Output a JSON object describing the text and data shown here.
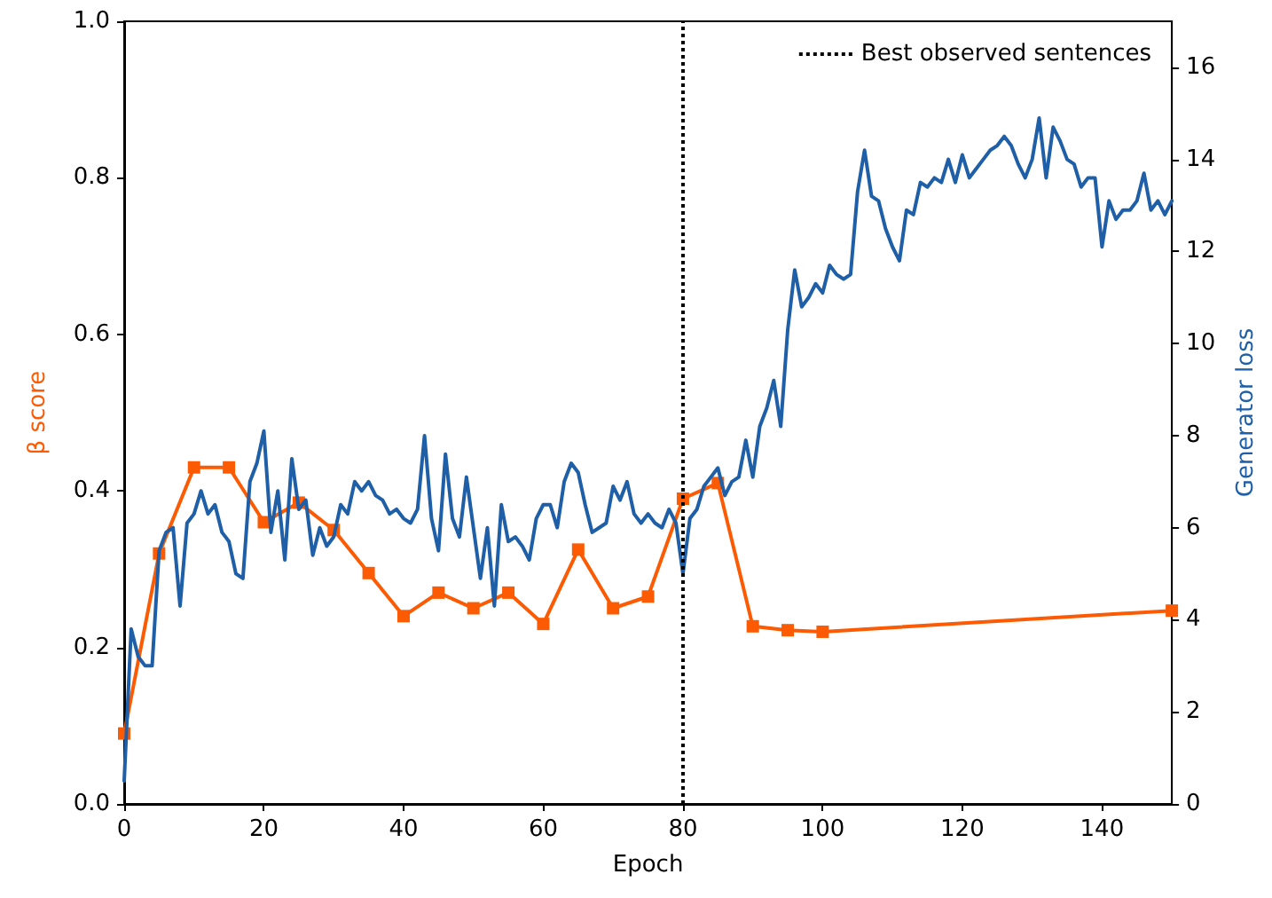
{
  "chart_data": {
    "type": "line",
    "xlabel": "Epoch",
    "ylabel": "β score",
    "y2label": "Generator loss",
    "xlim": [
      0,
      150
    ],
    "xticks": [
      0,
      20,
      40,
      60,
      80,
      100,
      120,
      140
    ],
    "ylim": [
      0,
      1
    ],
    "yticks": [
      {
        "value": 0,
        "label": "0.0"
      },
      0.2,
      0.4,
      0.6,
      0.8,
      {
        "value": 1,
        "label": "1.0"
      }
    ],
    "y2lim": [
      0,
      17
    ],
    "y2ticks": [
      0,
      2,
      4,
      6,
      8,
      10,
      12,
      14,
      16
    ],
    "grid": false,
    "legend": "top right",
    "ref_lines": [
      {
        "axis": "x",
        "value": 80,
        "label": "Best observed sentences",
        "color": "#000000",
        "line_style": "dotted"
      }
    ],
    "series": [
      {
        "color": "#fc5a03",
        "marker": "square",
        "x": [
          0,
          5,
          10,
          15,
          20,
          25,
          30,
          35,
          40,
          45,
          50,
          55,
          60,
          65,
          70,
          75,
          80,
          85,
          90,
          95,
          100,
          150
        ],
        "values": [
          0.09,
          0.32,
          0.43,
          0.43,
          0.36,
          0.385,
          0.35,
          0.295,
          0.24,
          0.27,
          0.25,
          0.27,
          0.23,
          0.325,
          0.25,
          0.265,
          0.39,
          0.41,
          0.227,
          0.222,
          0.22,
          0.247
        ]
      },
      {
        "color": "#1f5fa8",
        "marker": "none",
        "axis": "y2",
        "x": [
          0,
          1,
          2,
          3,
          4,
          5,
          6,
          7,
          8,
          9,
          10,
          11,
          12,
          13,
          14,
          15,
          16,
          17,
          18,
          19,
          20,
          21,
          22,
          23,
          24,
          25,
          26,
          27,
          28,
          29,
          30,
          31,
          32,
          33,
          34,
          35,
          36,
          37,
          38,
          39,
          40,
          41,
          42,
          43,
          44,
          45,
          46,
          47,
          48,
          49,
          50,
          51,
          52,
          53,
          54,
          55,
          56,
          57,
          58,
          59,
          60,
          61,
          62,
          63,
          64,
          65,
          66,
          67,
          68,
          69,
          70,
          71,
          72,
          73,
          74,
          75,
          76,
          77,
          78,
          79,
          80,
          81,
          82,
          83,
          84,
          85,
          86,
          87,
          88,
          89,
          90,
          91,
          92,
          93,
          94,
          95,
          96,
          97,
          98,
          99,
          100,
          101,
          102,
          103,
          104,
          105,
          106,
          107,
          108,
          109,
          110,
          111,
          112,
          113,
          114,
          115,
          116,
          117,
          118,
          119,
          120,
          121,
          122,
          123,
          124,
          125,
          126,
          127,
          128,
          129,
          130,
          131,
          132,
          133,
          134,
          135,
          136,
          137,
          138,
          139,
          140,
          141,
          142,
          143,
          144,
          145,
          146,
          147,
          148,
          149,
          150
        ],
        "values": [
          0.5,
          3.8,
          3.2,
          3.0,
          3.0,
          5.5,
          5.9,
          6.0,
          4.3,
          6.1,
          6.3,
          6.8,
          6.3,
          6.5,
          5.9,
          5.7,
          5.0,
          4.9,
          7.0,
          7.4,
          8.1,
          5.9,
          6.8,
          5.3,
          7.5,
          6.4,
          6.6,
          5.4,
          6.0,
          5.6,
          5.8,
          6.5,
          6.3,
          7.0,
          6.8,
          7.0,
          6.7,
          6.6,
          6.3,
          6.4,
          6.2,
          6.1,
          6.4,
          8.0,
          6.2,
          5.5,
          7.6,
          6.2,
          5.8,
          7.1,
          6.0,
          4.9,
          6.0,
          4.3,
          6.5,
          5.7,
          5.8,
          5.6,
          5.3,
          6.2,
          6.5,
          6.5,
          6.0,
          7.0,
          7.4,
          7.2,
          6.5,
          5.9,
          6.0,
          6.1,
          6.9,
          6.6,
          7.0,
          6.3,
          6.1,
          6.3,
          6.1,
          6.0,
          6.4,
          6.1,
          5.0,
          6.2,
          6.4,
          6.9,
          7.1,
          7.3,
          6.7,
          7.0,
          7.1,
          7.9,
          7.1,
          8.2,
          8.6,
          9.2,
          8.2,
          10.3,
          11.6,
          10.8,
          11.0,
          11.3,
          11.1,
          11.7,
          11.5,
          11.4,
          11.5,
          13.3,
          14.2,
          13.2,
          13.1,
          12.5,
          12.1,
          11.8,
          12.9,
          12.8,
          13.5,
          13.4,
          13.6,
          13.5,
          14.0,
          13.5,
          14.1,
          13.6,
          13.8,
          14.0,
          14.2,
          14.3,
          14.5,
          14.3,
          13.9,
          13.6,
          14.0,
          14.9,
          13.6,
          14.7,
          14.4,
          14.0,
          13.9,
          13.4,
          13.6,
          13.6,
          12.1,
          13.1,
          12.7,
          12.9,
          12.9,
          13.1,
          13.7,
          12.9,
          13.1,
          12.8,
          13.1
        ]
      }
    ]
  }
}
